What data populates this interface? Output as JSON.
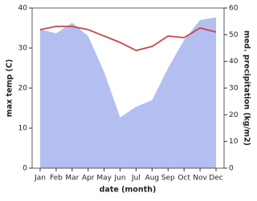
{
  "chart_data": {
    "type": "area-line",
    "categories": [
      "Jan",
      "Feb",
      "Mar",
      "Apr",
      "May",
      "Jun",
      "Jul",
      "Aug",
      "Sep",
      "Oct",
      "Nov",
      "Dec"
    ],
    "x_label": "date (month)",
    "y_label": "max temp (C)",
    "y2_label": "med. precipitation (kg/m2)",
    "ylim": [
      0,
      40
    ],
    "yticks": [
      0,
      10,
      20,
      30,
      40
    ],
    "y2lim": [
      0,
      60
    ],
    "y2ticks": [
      0,
      10,
      20,
      30,
      40,
      50,
      60
    ],
    "series": [
      {
        "name": "precipitation",
        "color": "#b3bff0",
        "axis": "y2",
        "values": [
          52,
          50.5,
          54.5,
          49.5,
          36,
          19,
          23,
          25.5,
          37.5,
          48,
          55.5,
          56.5
        ]
      },
      {
        "name": "max temp",
        "color": "#c8464b",
        "values": [
          34.6,
          35.4,
          35.4,
          34.6,
          33,
          31.4,
          29.4,
          30.4,
          33,
          32.6,
          35,
          34
        ]
      }
    ]
  }
}
